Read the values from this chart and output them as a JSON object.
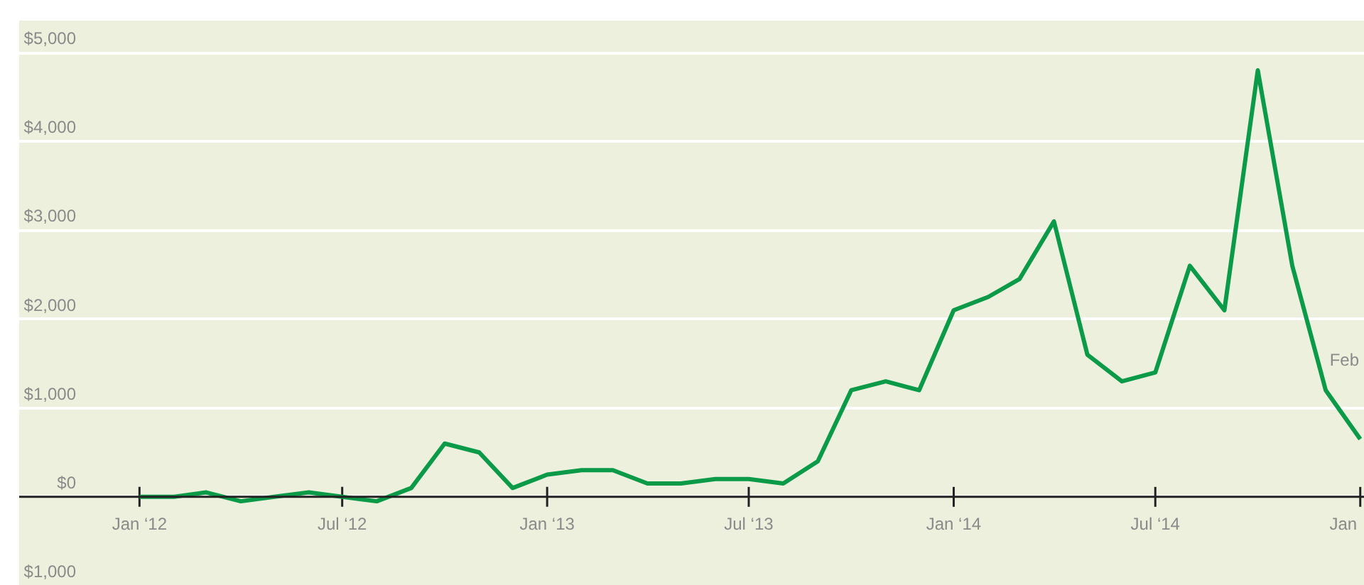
{
  "chart_data": {
    "type": "line",
    "x": [
      "2012-01",
      "2012-02",
      "2012-03",
      "2012-04",
      "2012-05",
      "2012-06",
      "2012-07",
      "2012-08",
      "2012-09",
      "2012-10",
      "2012-11",
      "2012-12",
      "2013-01",
      "2013-02",
      "2013-03",
      "2013-04",
      "2013-05",
      "2013-06",
      "2013-07",
      "2013-08",
      "2013-09",
      "2013-10",
      "2013-11",
      "2013-12",
      "2014-01",
      "2014-02",
      "2014-03",
      "2014-04",
      "2014-05",
      "2014-06",
      "2014-07",
      "2014-08",
      "2014-09",
      "2014-10",
      "2014-11",
      "2014-12",
      "2015-01"
    ],
    "series": [
      {
        "color": "#0a9a48",
        "values": [
          0,
          0,
          50,
          -50,
          0,
          50,
          0,
          -50,
          100,
          600,
          500,
          100,
          250,
          300,
          300,
          150,
          150,
          200,
          200,
          150,
          400,
          1200,
          1300,
          1200,
          2100,
          2250,
          2450,
          3100,
          1600,
          1300,
          1400,
          2600,
          2100,
          4800,
          2600,
          1200,
          650
        ]
      }
    ],
    "xlim": [
      "2011-09-15",
      "2015-01-05"
    ],
    "xticks": [
      {
        "value": "2012-01",
        "label": "Jan ‘12"
      },
      {
        "value": "2012-07",
        "label": "Jul ‘12"
      },
      {
        "value": "2013-01",
        "label": "Jan ‘13"
      },
      {
        "value": "2013-07",
        "label": "Jul ‘13"
      },
      {
        "value": "2014-01",
        "label": "Jan ‘14"
      },
      {
        "value": "2014-07",
        "label": "Jul ‘14"
      },
      {
        "value": "2015-01",
        "label": "Jan"
      }
    ],
    "ylim": [
      -1000,
      5360
    ],
    "yticks": [
      {
        "value": -1000,
        "label": "$1,000"
      },
      {
        "value": 0,
        "label": "$0"
      },
      {
        "value": 1000,
        "label": "$1,000"
      },
      {
        "value": 2000,
        "label": "$2,000"
      },
      {
        "value": 3000,
        "label": "$3,000"
      },
      {
        "value": 4000,
        "label": "$4,000"
      },
      {
        "value": 5000,
        "label": "$5,000"
      }
    ],
    "grid": "y",
    "annotations": [
      "Feb"
    ]
  }
}
